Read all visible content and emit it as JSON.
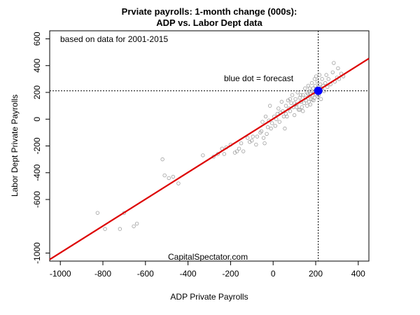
{
  "chart_data": {
    "type": "scatter",
    "title": [
      "Prviate payrolls: 1-month change (000s):",
      "ADP vs. Labor Dept data"
    ],
    "xlabel": "ADP Private Payrolls",
    "ylabel": "Labor Dept Private Payrolls",
    "xlim": [
      -1050,
      450
    ],
    "ylim": [
      -1060,
      660
    ],
    "x_ticks": [
      -1000,
      -800,
      -600,
      -400,
      -200,
      0,
      200,
      400
    ],
    "y_ticks": [
      600,
      400,
      200,
      0,
      -200,
      -400,
      -600,
      -1000
    ],
    "annotations": {
      "note": "based on data for 2001-2015",
      "forecast_label": "blue dot = forecast",
      "source": "CapitalSpectator.com"
    },
    "forecast": {
      "x": 212,
      "y": 212,
      "color": "#0000ff"
    },
    "regression_line": {
      "points": [
        [
          -1050,
          -1048
        ],
        [
          450,
          453
        ]
      ],
      "color": "#dd0000"
    },
    "reference_lines": {
      "vertical_x": 212,
      "horizontal_y": 212
    },
    "point_color": "#a0a0a0",
    "points": [
      [
        -825,
        -700
      ],
      [
        -790,
        -820
      ],
      [
        -720,
        -820
      ],
      [
        -700,
        -700
      ],
      [
        -655,
        -800
      ],
      [
        -640,
        -780
      ],
      [
        -520,
        -300
      ],
      [
        -510,
        -420
      ],
      [
        -490,
        -440
      ],
      [
        -470,
        -430
      ],
      [
        -445,
        -480
      ],
      [
        -330,
        -270
      ],
      [
        -280,
        -280
      ],
      [
        -260,
        -260
      ],
      [
        -240,
        -220
      ],
      [
        -230,
        -260
      ],
      [
        -220,
        -210
      ],
      [
        -200,
        -190
      ],
      [
        -180,
        -250
      ],
      [
        -170,
        -240
      ],
      [
        -160,
        -220
      ],
      [
        -150,
        -180
      ],
      [
        -140,
        -240
      ],
      [
        -120,
        -140
      ],
      [
        -110,
        -170
      ],
      [
        -100,
        -160
      ],
      [
        -95,
        -130
      ],
      [
        -80,
        -190
      ],
      [
        -75,
        -130
      ],
      [
        -60,
        -100
      ],
      [
        -55,
        -90
      ],
      [
        -50,
        -20
      ],
      [
        -45,
        -140
      ],
      [
        -40,
        -180
      ],
      [
        -30,
        -110
      ],
      [
        -25,
        -60
      ],
      [
        -20,
        -10
      ],
      [
        -15,
        100
      ],
      [
        -10,
        -70
      ],
      [
        -5,
        -30
      ],
      [
        5,
        20
      ],
      [
        10,
        -50
      ],
      [
        15,
        0
      ],
      [
        20,
        40
      ],
      [
        25,
        80
      ],
      [
        30,
        -20
      ],
      [
        35,
        50
      ],
      [
        40,
        130
      ],
      [
        45,
        60
      ],
      [
        50,
        20
      ],
      [
        55,
        -70
      ],
      [
        60,
        100
      ],
      [
        65,
        20
      ],
      [
        70,
        140
      ],
      [
        75,
        80
      ],
      [
        80,
        60
      ],
      [
        85,
        120
      ],
      [
        90,
        180
      ],
      [
        95,
        90
      ],
      [
        100,
        30
      ],
      [
        105,
        150
      ],
      [
        110,
        110
      ],
      [
        115,
        200
      ],
      [
        120,
        70
      ],
      [
        125,
        160
      ],
      [
        130,
        130
      ],
      [
        135,
        90
      ],
      [
        140,
        180
      ],
      [
        145,
        120
      ],
      [
        150,
        230
      ],
      [
        152,
        160
      ],
      [
        155,
        140
      ],
      [
        158,
        200
      ],
      [
        160,
        100
      ],
      [
        163,
        190
      ],
      [
        165,
        250
      ],
      [
        168,
        130
      ],
      [
        170,
        170
      ],
      [
        172,
        230
      ],
      [
        175,
        190
      ],
      [
        178,
        150
      ],
      [
        180,
        210
      ],
      [
        182,
        270
      ],
      [
        185,
        180
      ],
      [
        188,
        230
      ],
      [
        190,
        140
      ],
      [
        192,
        200
      ],
      [
        195,
        300
      ],
      [
        198,
        250
      ],
      [
        200,
        190
      ],
      [
        202,
        320
      ],
      [
        205,
        220
      ],
      [
        208,
        280
      ],
      [
        210,
        170
      ],
      [
        215,
        240
      ],
      [
        218,
        330
      ],
      [
        220,
        200
      ],
      [
        222,
        260
      ],
      [
        225,
        150
      ],
      [
        228,
        230
      ],
      [
        230,
        300
      ],
      [
        235,
        250
      ],
      [
        240,
        210
      ],
      [
        245,
        270
      ],
      [
        250,
        330
      ],
      [
        255,
        240
      ],
      [
        260,
        300
      ],
      [
        270,
        260
      ],
      [
        280,
        350
      ],
      [
        285,
        420
      ],
      [
        290,
        280
      ],
      [
        300,
        310
      ],
      [
        305,
        380
      ],
      [
        310,
        300
      ],
      [
        320,
        340
      ],
      [
        330,
        320
      ],
      [
        125,
        70
      ],
      [
        140,
        60
      ],
      [
        110,
        90
      ],
      [
        175,
        110
      ],
      [
        185,
        145
      ],
      [
        60,
        40
      ],
      [
        80,
        150
      ],
      [
        -35,
        20
      ],
      [
        100,
        120
      ],
      [
        130,
        180
      ],
      [
        215,
        180
      ],
      [
        195,
        160
      ]
    ]
  }
}
